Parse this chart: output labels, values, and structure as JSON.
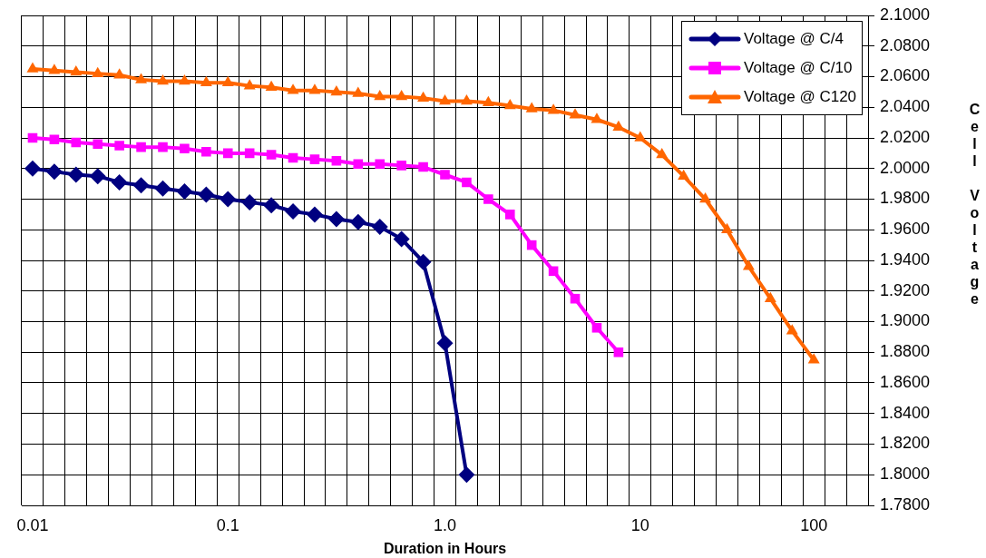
{
  "chart_data": {
    "type": "line",
    "xlabel": "Duration in Hours",
    "ylabel": "Cell Voltage",
    "categories": [
      "0.01",
      null,
      null,
      null,
      null,
      null,
      null,
      null,
      null,
      "0.1",
      null,
      null,
      null,
      null,
      null,
      null,
      null,
      null,
      null,
      "1.0",
      null,
      null,
      null,
      null,
      null,
      null,
      null,
      null,
      "10",
      null,
      null,
      null,
      null,
      null,
      null,
      null,
      "100",
      null,
      null
    ],
    "series": [
      {
        "name": "Voltage @ C/4",
        "color": "#000080",
        "marker": "diamond",
        "values": [
          2.0,
          1.998,
          1.996,
          1.995,
          1.991,
          1.989,
          1.987,
          1.985,
          1.983,
          1.98,
          1.978,
          1.976,
          1.972,
          1.97,
          1.967,
          1.965,
          1.962,
          1.954,
          1.939,
          1.886,
          1.8,
          null,
          null,
          null,
          null,
          null,
          null,
          null,
          null,
          null,
          null,
          null,
          null,
          null,
          null,
          null,
          null,
          null,
          null
        ]
      },
      {
        "name": "Voltage @ C/10",
        "color": "#ff00ff",
        "marker": "square",
        "values": [
          2.02,
          2.019,
          2.017,
          2.016,
          2.015,
          2.014,
          2.014,
          2.013,
          2.011,
          2.01,
          2.01,
          2.009,
          2.007,
          2.006,
          2.005,
          2.003,
          2.003,
          2.002,
          2.001,
          1.996,
          1.991,
          1.98,
          1.97,
          1.95,
          1.933,
          1.915,
          1.896,
          1.88,
          null,
          null,
          null,
          null,
          null,
          null,
          null,
          null,
          null,
          null,
          null
        ]
      },
      {
        "name": "Voltage @ C120",
        "color": "#ff6600",
        "marker": "triangle",
        "values": [
          2.065,
          2.064,
          2.063,
          2.062,
          2.061,
          2.058,
          2.057,
          2.057,
          2.056,
          2.056,
          2.054,
          2.053,
          2.051,
          2.051,
          2.05,
          2.049,
          2.047,
          2.047,
          2.046,
          2.044,
          2.044,
          2.043,
          2.041,
          2.039,
          2.038,
          2.035,
          2.032,
          2.027,
          2.02,
          2.009,
          1.995,
          1.98,
          1.96,
          1.936,
          1.915,
          1.894,
          1.875,
          null,
          null
        ]
      }
    ],
    "ylim": [
      1.78,
      2.1
    ],
    "yticks": [
      {
        "value": 1.78,
        "label": "1.7800"
      },
      {
        "value": 1.8,
        "label": "1.8000"
      },
      {
        "value": 1.82,
        "label": "1.8200"
      },
      {
        "value": 1.84,
        "label": "1.8400"
      },
      {
        "value": 1.86,
        "label": "1.8600"
      },
      {
        "value": 1.88,
        "label": "1.8800"
      },
      {
        "value": 1.9,
        "label": "1.9000"
      },
      {
        "value": 1.92,
        "label": "1.9200"
      },
      {
        "value": 1.94,
        "label": "1.9400"
      },
      {
        "value": 1.96,
        "label": "1.9600"
      },
      {
        "value": 1.98,
        "label": "1.9800"
      },
      {
        "value": 2.0,
        "label": "2.0000"
      },
      {
        "value": 2.02,
        "label": "2.0200"
      },
      {
        "value": 2.04,
        "label": "2.0400"
      },
      {
        "value": 2.06,
        "label": "2.0600"
      },
      {
        "value": 2.08,
        "label": "2.0800"
      },
      {
        "value": 2.1,
        "label": "2.1000"
      }
    ],
    "grid": true,
    "legend": "top right",
    "line_style": "solid"
  }
}
